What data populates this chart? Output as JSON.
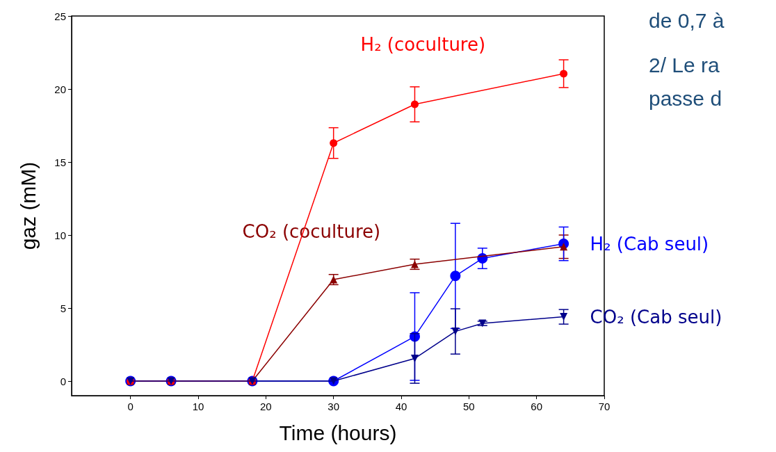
{
  "chart_data": {
    "type": "line",
    "xlabel": "Time (hours)",
    "ylabel": "gaz (mM)",
    "xlim": [
      -8.7,
      70
    ],
    "xticks": [
      0,
      10,
      20,
      30,
      40,
      50,
      60,
      70
    ],
    "ylim": [
      -1,
      25
    ],
    "yticks": [
      0,
      5,
      10,
      15,
      20,
      25
    ],
    "grid": false,
    "legend": false,
    "line_style": "solid",
    "annotations": [
      "de 0,7 à",
      "2/ Le ra",
      "passe d"
    ],
    "series": [
      {
        "name": "H₂ (coculture)",
        "color": "#ff0000",
        "marker": "circle",
        "x": [
          0,
          6,
          18,
          30,
          42,
          64
        ],
        "values": [
          0,
          0,
          0,
          16.3,
          18.95,
          21.05
        ],
        "errors": [
          null,
          null,
          null,
          1.05,
          1.2,
          0.95
        ]
      },
      {
        "name": "CO₂ (coculture)",
        "color": "#8b0000",
        "marker": "triangle",
        "x": [
          0,
          6,
          18,
          30,
          42,
          64
        ],
        "values": [
          0,
          0,
          0,
          6.95,
          8.0,
          9.2
        ],
        "errors": [
          null,
          null,
          null,
          0.35,
          0.35,
          0.8
        ]
      },
      {
        "name": "H₂ (Cab seul)",
        "color": "#0000ff",
        "marker": "circle",
        "x": [
          0,
          6,
          18,
          30,
          42,
          48,
          52,
          64
        ],
        "values": [
          0,
          0,
          0,
          0,
          3.05,
          7.2,
          8.4,
          9.4
        ],
        "errors": [
          null,
          null,
          null,
          null,
          3,
          3.6,
          0.7,
          1.15
        ]
      },
      {
        "name": "CO₂ (Cab seul)",
        "color": "#00008b",
        "marker": "triangle-down",
        "x": [
          0,
          6,
          18,
          30,
          42,
          48,
          52,
          64
        ],
        "values": [
          0,
          0,
          0,
          0,
          1.55,
          3.4,
          3.95,
          4.4
        ],
        "errors": [
          null,
          null,
          null,
          null,
          1.7,
          1.55,
          0.15,
          0.5
        ]
      }
    ]
  }
}
